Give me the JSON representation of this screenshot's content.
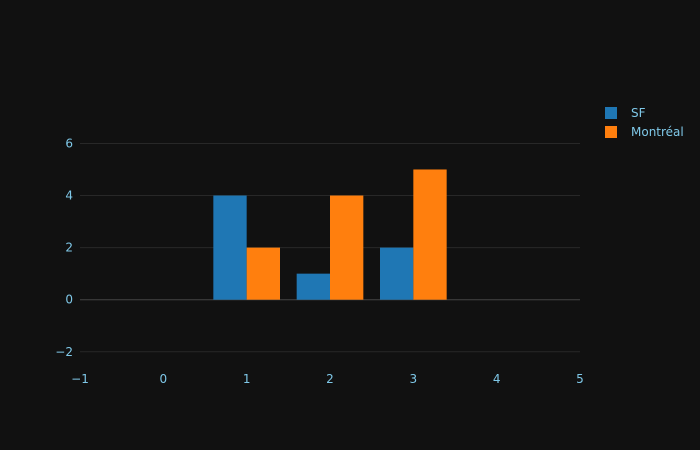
{
  "chart_data": {
    "type": "bar",
    "title": "",
    "xlabel": "",
    "ylabel": "",
    "x": [
      1,
      2,
      3
    ],
    "series": [
      {
        "name": "SF",
        "values": [
          4,
          1,
          2
        ],
        "color": "#1f77b4"
      },
      {
        "name": "Montréal",
        "values": [
          2,
          4,
          5
        ],
        "color": "#ff7f0e"
      }
    ],
    "xlim": [
      -1,
      5
    ],
    "ylim": [
      -2.7,
      6.9
    ],
    "x_ticks": [
      -1,
      0,
      1,
      2,
      3,
      4,
      5
    ],
    "y_ticks": [
      -2,
      0,
      2,
      4,
      6
    ],
    "x_tick_labels": [
      "−1",
      "0",
      "1",
      "2",
      "3",
      "4",
      "5"
    ],
    "y_tick_labels": [
      "−2",
      "0",
      "2",
      "4",
      "6"
    ],
    "grid": true,
    "legend_position": "top-right",
    "colors": {
      "background": "#111111",
      "grid": "#282828",
      "zeroline": "#444444",
      "tick_text": "#7fc8e8"
    }
  }
}
